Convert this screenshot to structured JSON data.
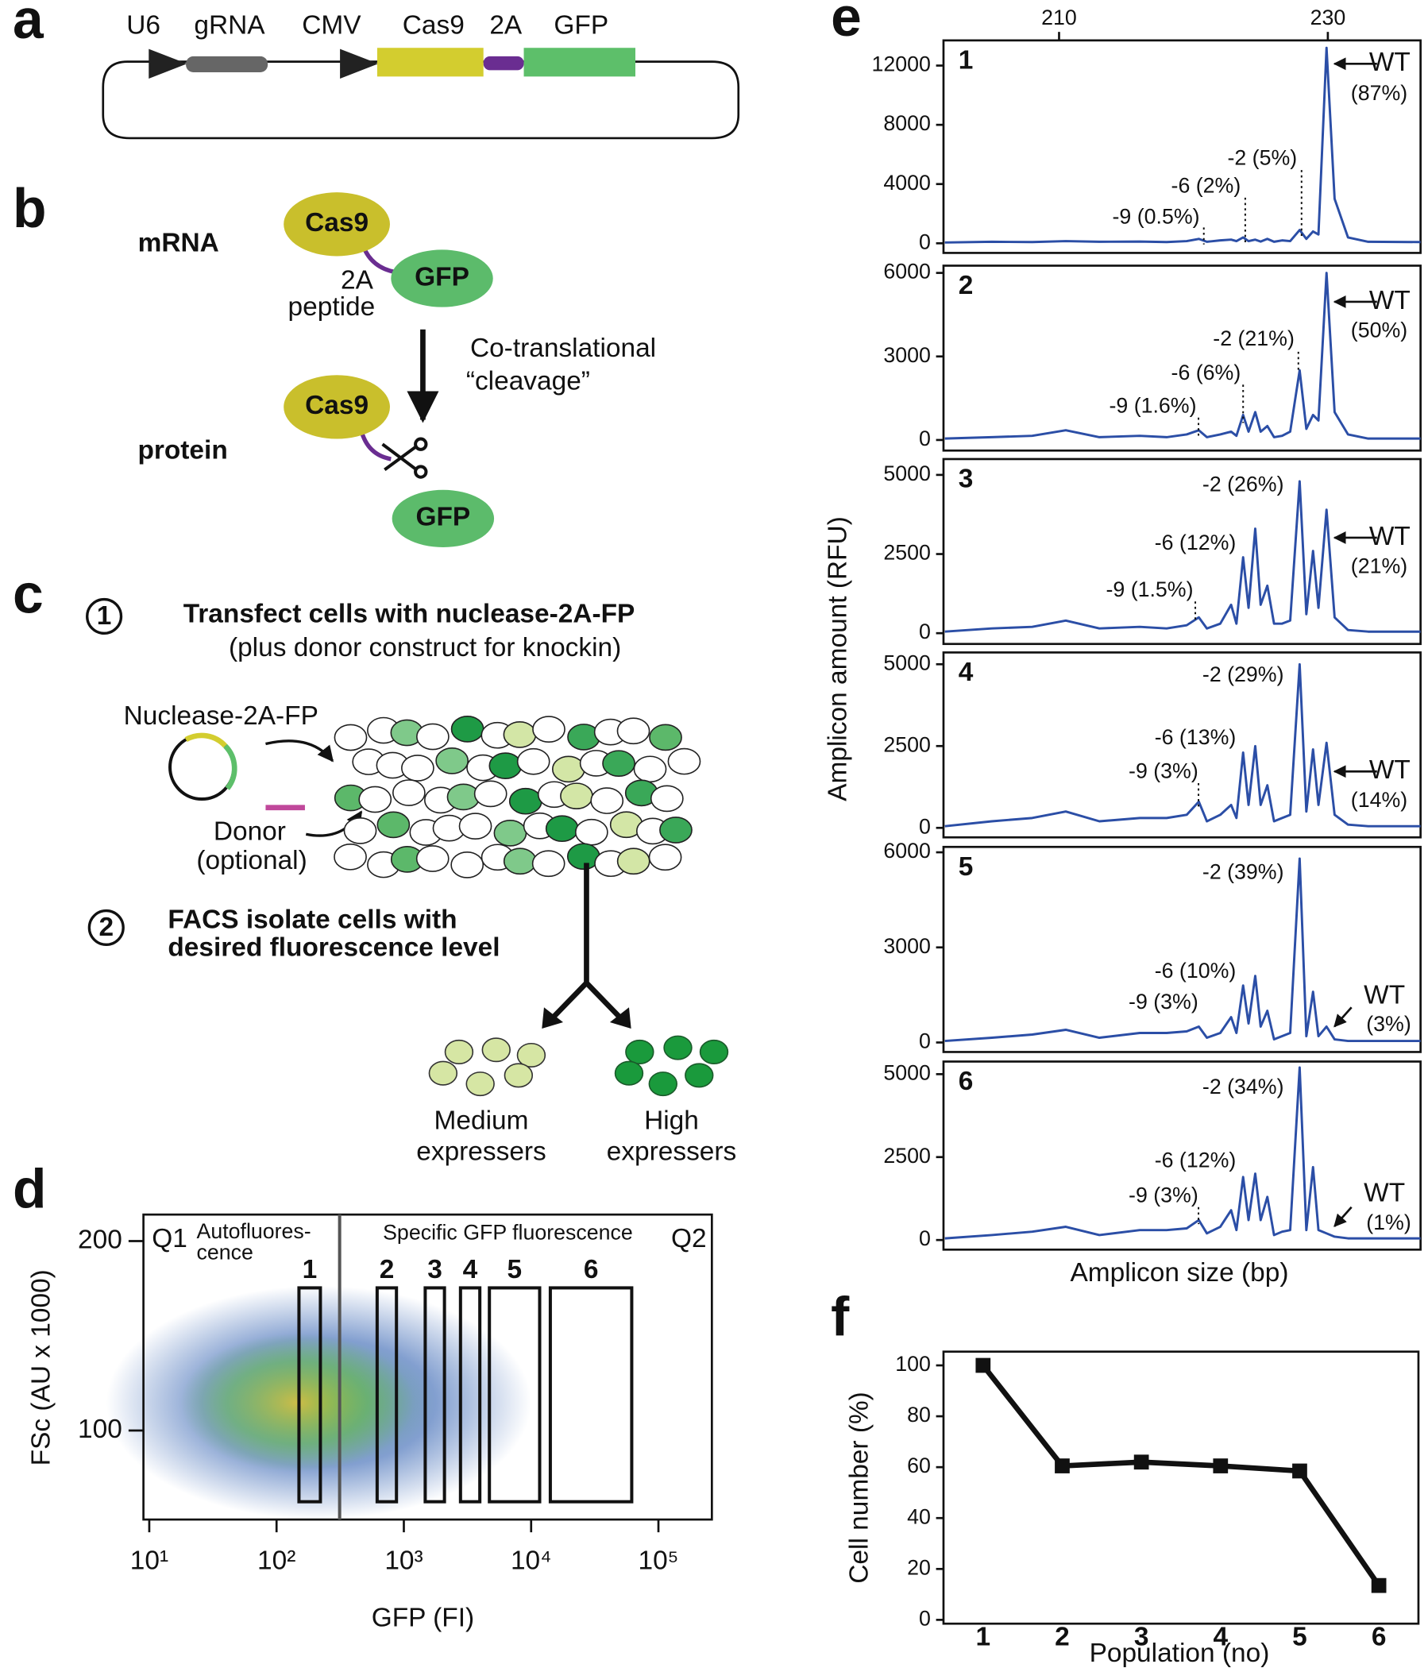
{
  "figure": {
    "a": {
      "letter": "a",
      "labels": [
        "U6",
        "gRNA",
        "CMV",
        "Cas9",
        "2A",
        "GFP"
      ]
    },
    "b": {
      "letter": "b",
      "mrna": "mRNA",
      "protein": "protein",
      "cas9": "Cas9",
      "gfp": "GFP",
      "linker": [
        "2A",
        "peptide"
      ],
      "arrow": [
        "Co-translational",
        "“cleavage”"
      ]
    },
    "c": {
      "letter": "c",
      "steps": [
        {
          "number": "1",
          "lines": [
            "Transfect cells with nuclease-2A-FP",
            "(plus donor construct for knockin)"
          ]
        },
        {
          "number": "2",
          "lines": [
            "FACS isolate cells with",
            "desired fluorescence level"
          ]
        }
      ],
      "plasmid": "Nuclease-2A-FP",
      "donor": [
        "Donor",
        "(optional)"
      ],
      "groups": [
        {
          "lines": [
            "Medium",
            "expressers"
          ]
        },
        {
          "lines": [
            "High",
            "expressers"
          ]
        }
      ]
    }
  },
  "chart_data": [
    {
      "type": "scatter",
      "panel": "d",
      "x_label": "GFP (FI)",
      "y_label": "FSc (AU x 1000)",
      "log_x": true,
      "xlim": [
        9,
        263000
      ],
      "ylim": [
        53,
        214
      ],
      "xticks": [
        {
          "value": 10,
          "label": "10¹"
        },
        {
          "value": 100,
          "label": "10²"
        },
        {
          "value": 1000,
          "label": "10³"
        },
        {
          "value": 10000,
          "label": "10⁴"
        },
        {
          "value": 100000,
          "label": "10⁵"
        }
      ],
      "yticks": [
        100,
        200
      ],
      "threshold": 313,
      "quadrants": [
        "Q1",
        "Q2"
      ],
      "region_labels": [
        "Autofluores-",
        "cence",
        "Specific GFP fluorescence"
      ],
      "gates": [
        {
          "name": "1",
          "x": [
            150,
            221
          ],
          "y": [
            62.4,
            175.3
          ]
        },
        {
          "name": "2",
          "x": [
            617,
            875
          ],
          "y": [
            62.4,
            175.3
          ]
        },
        {
          "name": "3",
          "x": [
            1472,
            2085
          ],
          "y": [
            62.4,
            175.3
          ]
        },
        {
          "name": "4",
          "x": [
            2787,
            3953
          ],
          "y": [
            62.4,
            175.3
          ]
        },
        {
          "name": "5",
          "x": [
            4700,
            11670
          ],
          "y": [
            62.4,
            175.3
          ]
        },
        {
          "name": "6",
          "x": [
            14150,
            61700
          ],
          "y": [
            62.4,
            175.3
          ]
        }
      ],
      "color": "#111111"
    },
    {
      "type": "line",
      "panel": "e",
      "x_label": "Amplicon size (bp)",
      "y_label": "Amplicon amount (RFU)",
      "color": "#2b4ea6",
      "xlim": [
        201.4,
        236.9
      ],
      "xticks": [
        210,
        230
      ],
      "x": [
        201.5,
        205,
        208,
        210.5,
        213,
        216,
        218,
        219.5,
        220.4,
        221,
        222,
        222.8,
        223.2,
        223.7,
        224.1,
        224.6,
        225.0,
        225.5,
        226.0,
        226.6,
        227.2,
        227.9,
        228.4,
        228.9,
        229.3,
        229.9,
        230.5,
        231.5,
        233,
        236.9
      ],
      "subplots": [
        {
          "label": "1",
          "ylim": [
            -650,
            13700
          ],
          "yticks": [
            0,
            4000,
            8000,
            12000
          ],
          "m9": "-9 (0.5%)",
          "m6": "-6 (2%)",
          "m2": "-2 (5%)",
          "wt": "WT",
          "wt_share": "(87%)",
          "values": [
            50,
            100,
            80,
            150,
            100,
            120,
            80,
            150,
            300,
            100,
            200,
            250,
            150,
            400,
            150,
            250,
            120,
            300,
            100,
            200,
            150,
            900,
            300,
            800,
            600,
            13200,
            3000,
            400,
            100,
            80
          ]
        },
        {
          "label": "2",
          "ylim": [
            -380,
            6260
          ],
          "yticks": [
            0,
            3000,
            6000
          ],
          "m9": "-9 (1.6%)",
          "m6": "-6 (6%)",
          "m2": "-2 (21%)",
          "wt": "WT",
          "wt_share": "(50%)",
          "values": [
            50,
            100,
            150,
            350,
            100,
            150,
            100,
            200,
            350,
            100,
            200,
            300,
            150,
            900,
            300,
            1000,
            300,
            500,
            100,
            150,
            300,
            2500,
            400,
            900,
            700,
            6000,
            1000,
            200,
            50,
            50
          ]
        },
        {
          "label": "3",
          "ylim": [
            -340,
            5500
          ],
          "yticks": [
            0,
            2500,
            5000
          ],
          "m9": "-9 (1.5%)",
          "m6": "-6 (12%)",
          "m2": "-2 (26%)",
          "wt": "WT",
          "wt_share": "(21%)",
          "values": [
            50,
            150,
            200,
            400,
            150,
            200,
            150,
            250,
            500,
            150,
            300,
            900,
            300,
            2400,
            800,
            3300,
            900,
            1500,
            300,
            300,
            400,
            4800,
            600,
            2600,
            800,
            3900,
            500,
            100,
            50,
            50
          ]
        },
        {
          "label": "4",
          "ylim": [
            -290,
            5360
          ],
          "yticks": [
            0,
            2500,
            5000
          ],
          "m9": "-9 (3%)",
          "m6": "-6 (13%)",
          "m2": "-2 (29%)",
          "wt": "WT",
          "wt_share": "(14%)",
          "values": [
            50,
            200,
            300,
            500,
            200,
            300,
            300,
            400,
            800,
            200,
            400,
            700,
            300,
            2300,
            700,
            2500,
            700,
            1300,
            200,
            300,
            400,
            5000,
            500,
            2400,
            700,
            2600,
            400,
            100,
            50,
            50
          ]
        },
        {
          "label": "5",
          "ylim": [
            -300,
            6170
          ],
          "yticks": [
            0,
            3000,
            6000
          ],
          "m9": "-9 (3%)",
          "m6": "-6 (10%)",
          "m2": "-2 (39%)",
          "wt": "WT",
          "wt_share": "(3%)",
          "values": [
            50,
            150,
            250,
            400,
            150,
            300,
            300,
            350,
            500,
            150,
            300,
            800,
            300,
            1800,
            600,
            2100,
            500,
            1000,
            100,
            200,
            300,
            5800,
            200,
            1600,
            200,
            500,
            100,
            50,
            50,
            50
          ]
        },
        {
          "label": "6",
          "ylim": [
            -290,
            5380
          ],
          "yticks": [
            0,
            2500,
            5000
          ],
          "m9": "-9 (3%)",
          "m6": "-6 (12%)",
          "m2": "-2 (34%)",
          "wt": "WT",
          "wt_share": "(1%)",
          "values": [
            50,
            150,
            250,
            400,
            150,
            300,
            300,
            350,
            600,
            200,
            400,
            900,
            300,
            1900,
            600,
            2000,
            600,
            1300,
            150,
            250,
            300,
            5200,
            300,
            2200,
            300,
            200,
            100,
            50,
            50,
            50
          ]
        }
      ]
    },
    {
      "type": "line",
      "panel": "f",
      "x_label": "Population (no)",
      "y_label": "Cell number (%)",
      "color": "#111111",
      "categories": [
        "1",
        "2",
        "3",
        "4",
        "5",
        "6"
      ],
      "values": [
        100,
        60.5,
        62,
        60.5,
        58.5,
        13.5
      ],
      "ylim": [
        -1.5,
        105.4
      ],
      "yticks": [
        0,
        20,
        40,
        60,
        80,
        100
      ]
    }
  ]
}
